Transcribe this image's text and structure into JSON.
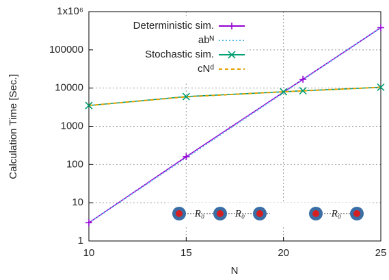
{
  "chart_data": {
    "type": "line",
    "x_label": "N",
    "y_label": "Calculation Time [Sec.]",
    "xlim": [
      10,
      25
    ],
    "xticks": [
      10,
      15,
      20,
      25
    ],
    "ylim": [
      1,
      1000000
    ],
    "log_y": true,
    "yticks": [
      1,
      10,
      100,
      1000,
      10000,
      100000,
      {
        "value": 1000000,
        "label": "1x10⁶"
      }
    ],
    "grid": true,
    "legend": "top-left",
    "series": [
      {
        "name": "Deterministic sim.",
        "color": "#9400d3",
        "marker": "plus",
        "style": "solid",
        "x": [
          10,
          15,
          21,
          25
        ],
        "values": [
          3,
          160,
          17000,
          380000
        ]
      },
      {
        "name": "abᴺ",
        "color": "#56b4e9",
        "marker": "none",
        "style": "dotted",
        "x": [
          10,
          25
        ],
        "values": [
          3,
          380000
        ]
      },
      {
        "name": "Stochastic sim.",
        "color": "#009e73",
        "marker": "cross",
        "style": "solid",
        "x": [
          10,
          15,
          20,
          21,
          25
        ],
        "values": [
          3500,
          6000,
          8000,
          8500,
          10500
        ]
      },
      {
        "name": "cNᵈ",
        "color": "#e69f00",
        "marker": "none",
        "style": "dashed",
        "x": [
          10,
          15,
          20,
          25
        ],
        "values": [
          3500,
          5900,
          8000,
          10500
        ]
      }
    ],
    "inset_labels": [
      "R₀",
      "R₀",
      "R₀"
    ]
  }
}
